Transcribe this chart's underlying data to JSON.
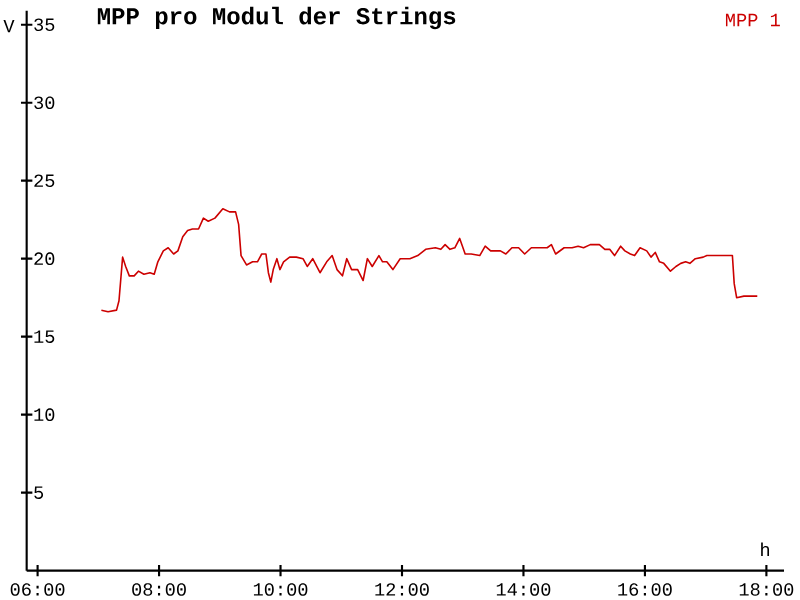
{
  "chart_data": {
    "type": "line",
    "title": "MPP pro Modul der Strings",
    "xlabel": "h",
    "ylabel": "V",
    "x": [
      7.05,
      7.16,
      7.3,
      7.34,
      7.4,
      7.45,
      7.51,
      7.59,
      7.66,
      7.75,
      7.85,
      7.92,
      7.98,
      8.07,
      8.15,
      8.24,
      8.31,
      8.39,
      8.47,
      8.55,
      8.65,
      8.73,
      8.81,
      8.92,
      9.05,
      9.16,
      9.26,
      9.31,
      9.35,
      9.44,
      9.54,
      9.62,
      9.69,
      9.76,
      9.8,
      9.84,
      9.88,
      9.94,
      9.99,
      10.05,
      10.15,
      10.26,
      10.37,
      10.44,
      10.53,
      10.65,
      10.76,
      10.85,
      10.93,
      11.02,
      11.09,
      11.17,
      11.27,
      11.36,
      11.43,
      11.51,
      11.62,
      11.68,
      11.75,
      11.85,
      11.97,
      12.13,
      12.26,
      12.39,
      12.55,
      12.64,
      12.71,
      12.79,
      12.87,
      12.95,
      13.04,
      13.14,
      13.28,
      13.37,
      13.46,
      13.62,
      13.71,
      13.81,
      13.92,
      14.02,
      14.13,
      14.29,
      14.39,
      14.46,
      14.53,
      14.67,
      14.8,
      14.9,
      14.99,
      15.1,
      15.25,
      15.34,
      15.42,
      15.5,
      15.6,
      15.67,
      15.76,
      15.83,
      15.92,
      16.03,
      16.1,
      16.17,
      16.24,
      16.31,
      16.42,
      16.51,
      16.59,
      16.67,
      16.74,
      16.83,
      16.96,
      17.02,
      17.26,
      17.44,
      17.47,
      17.51,
      17.63,
      17.85
    ],
    "series": [
      {
        "name": "MPP 1",
        "color": "#cc0000",
        "values": [
          16.7,
          16.6,
          16.7,
          17.3,
          20.1,
          19.5,
          18.9,
          18.9,
          19.2,
          19.0,
          19.1,
          19.0,
          19.8,
          20.5,
          20.7,
          20.3,
          20.5,
          21.4,
          21.8,
          21.9,
          21.9,
          22.6,
          22.4,
          22.6,
          23.2,
          23.0,
          23.0,
          22.2,
          20.2,
          19.6,
          19.8,
          19.8,
          20.3,
          20.3,
          19.1,
          18.5,
          19.3,
          20.0,
          19.3,
          19.8,
          20.1,
          20.1,
          20.0,
          19.5,
          20.0,
          19.1,
          19.8,
          20.2,
          19.3,
          18.9,
          20.0,
          19.3,
          19.3,
          18.6,
          20.0,
          19.5,
          20.2,
          19.8,
          19.8,
          19.3,
          20.0,
          20.0,
          20.2,
          20.6,
          20.7,
          20.6,
          20.9,
          20.6,
          20.7,
          21.3,
          20.3,
          20.3,
          20.2,
          20.8,
          20.5,
          20.5,
          20.3,
          20.7,
          20.7,
          20.3,
          20.7,
          20.7,
          20.7,
          20.9,
          20.3,
          20.7,
          20.7,
          20.8,
          20.7,
          20.9,
          20.9,
          20.6,
          20.6,
          20.2,
          20.8,
          20.5,
          20.3,
          20.2,
          20.7,
          20.5,
          20.1,
          20.4,
          19.8,
          19.7,
          19.2,
          19.5,
          19.7,
          19.8,
          19.7,
          20.0,
          20.1,
          20.2,
          20.2,
          20.2,
          18.4,
          17.5,
          17.6,
          17.6
        ]
      }
    ],
    "xlim": [
      5.82,
      18.29
    ],
    "ylim": [
      0,
      35.9
    ],
    "xticks": [
      {
        "value": 6,
        "label": "06:00"
      },
      {
        "value": 8,
        "label": "08:00"
      },
      {
        "value": 10,
        "label": "10:00"
      },
      {
        "value": 12,
        "label": "12:00"
      },
      {
        "value": 14,
        "label": "14:00"
      },
      {
        "value": 16,
        "label": "16:00"
      },
      {
        "value": 18,
        "label": "18:00"
      }
    ],
    "yticks": [
      5,
      10,
      15,
      20,
      25,
      30,
      35
    ]
  }
}
